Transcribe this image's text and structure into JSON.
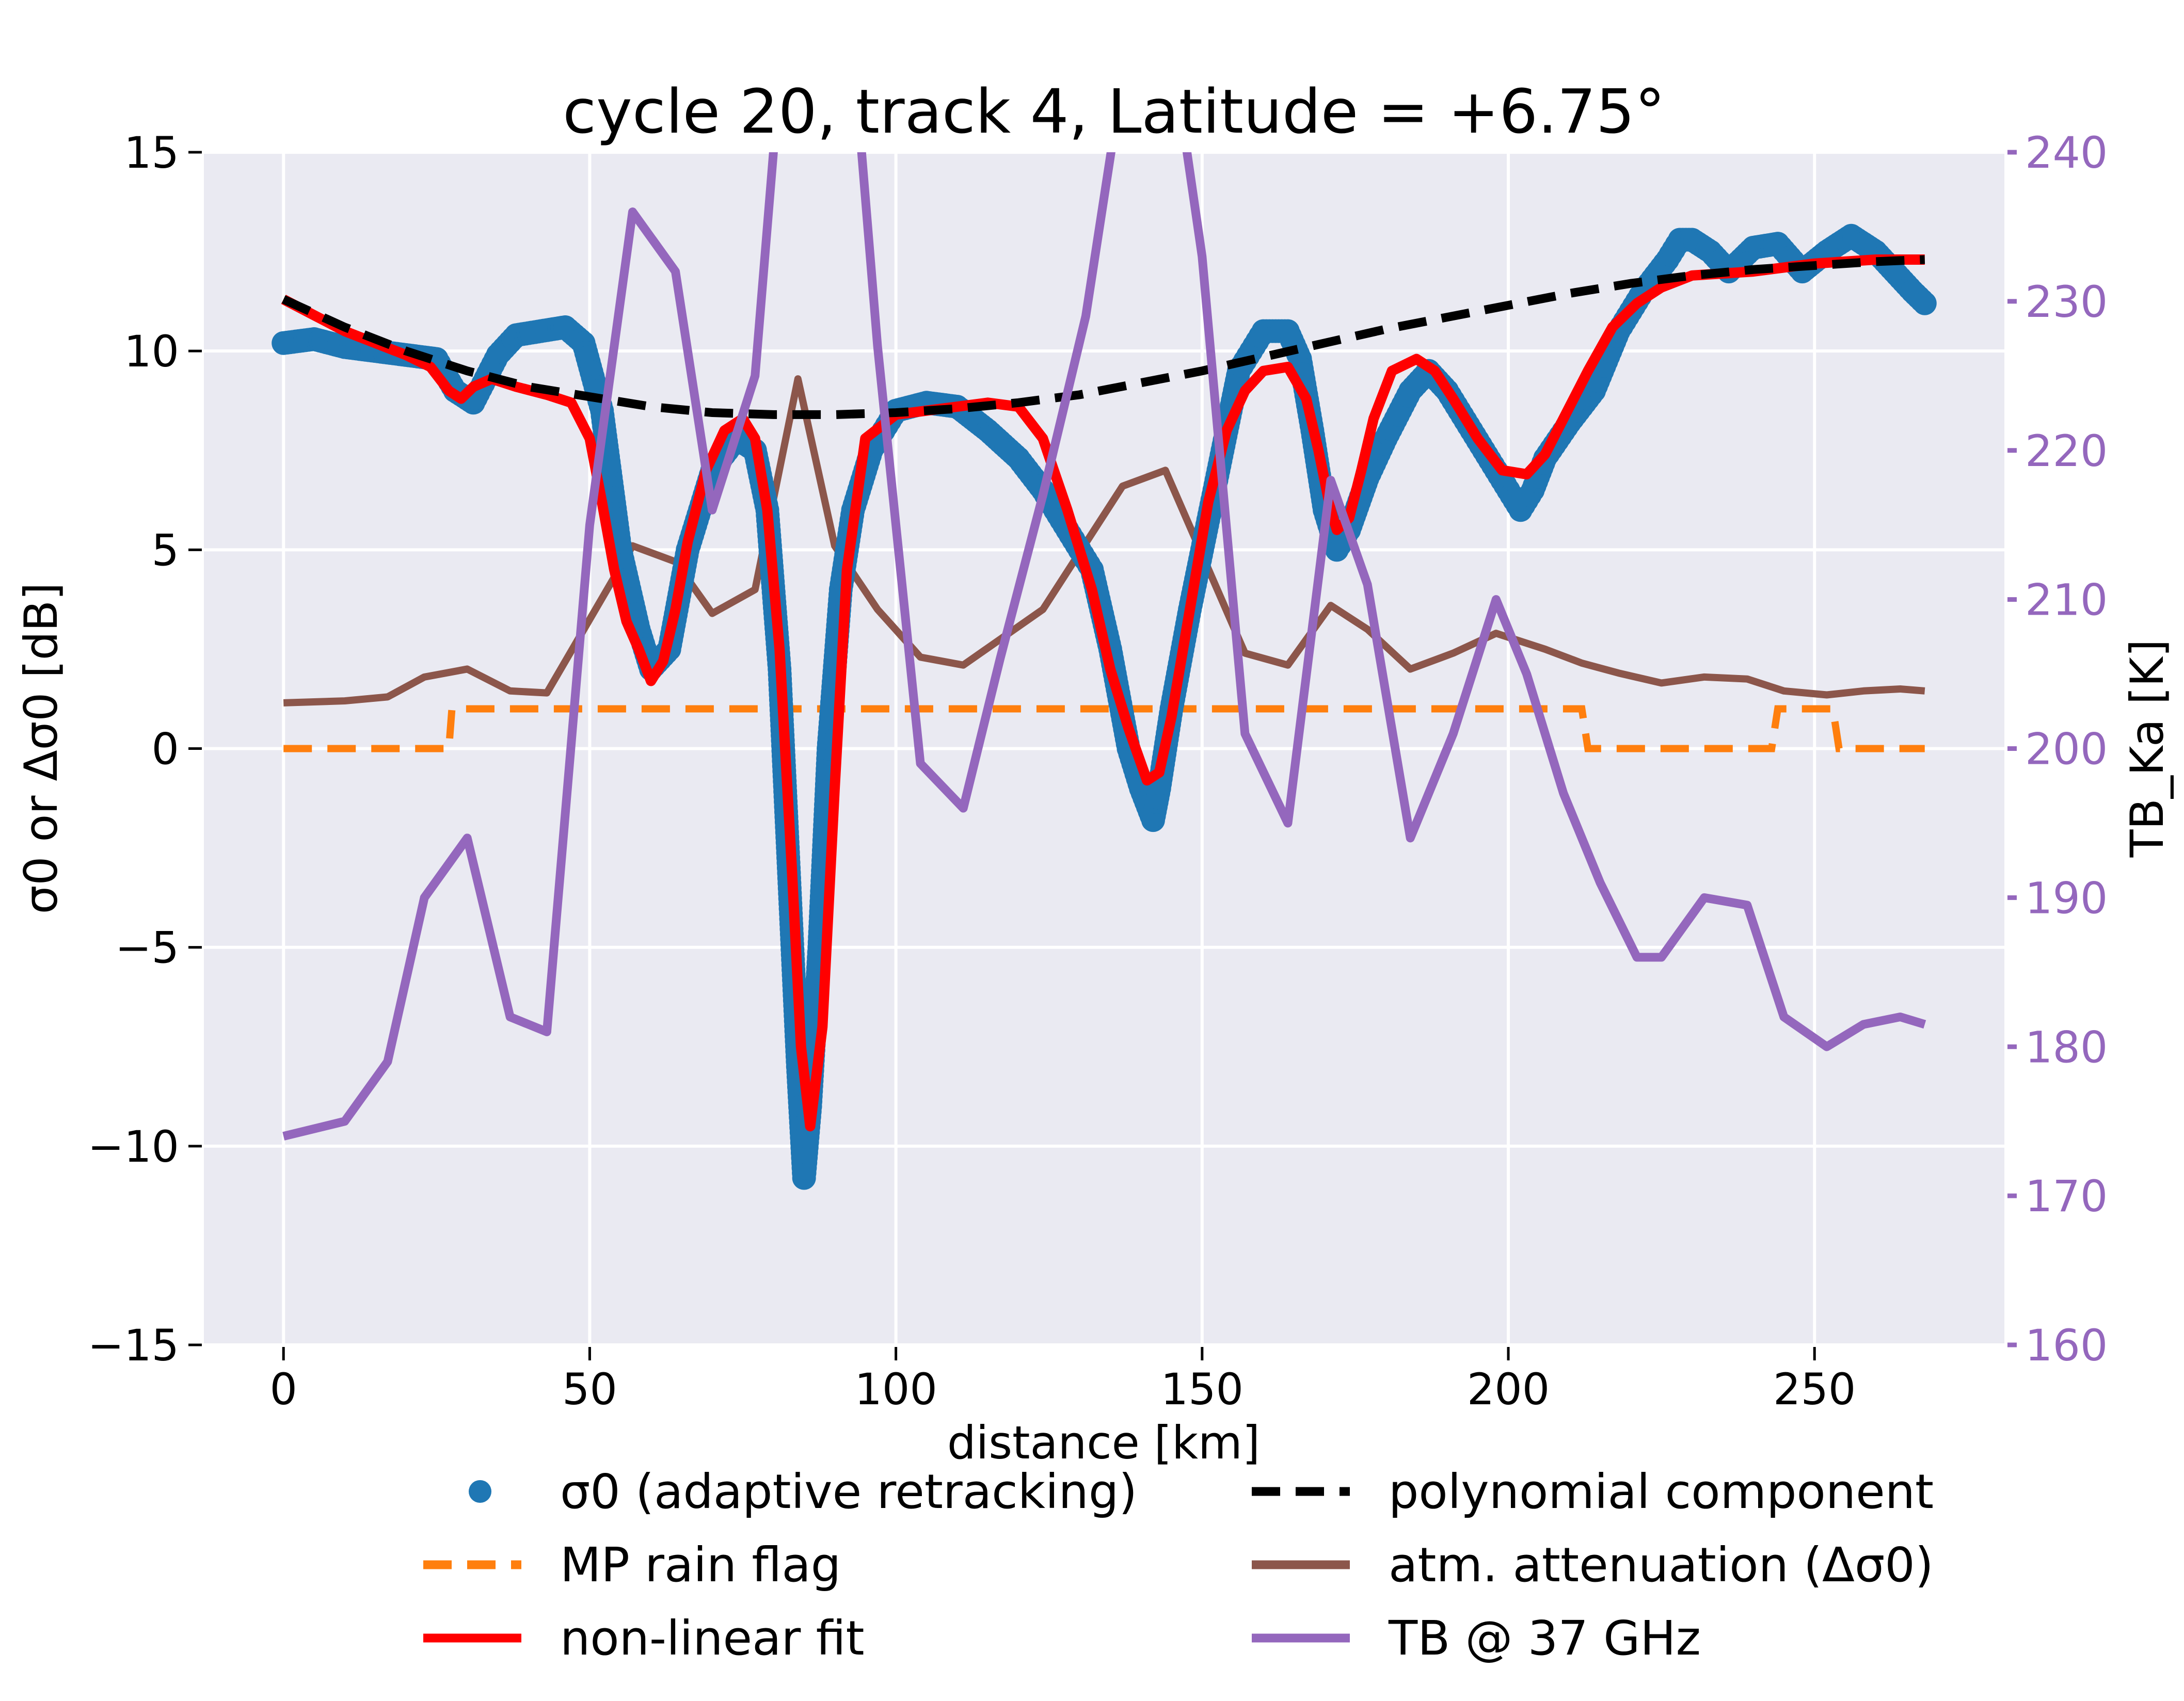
{
  "chart_data": {
    "type": "line",
    "title": "cycle 20, track 4, Latitude = +6.75°",
    "xlabel": "distance [km]",
    "ylabel": "σ0 or Δσ0 [dB]",
    "ylabel_right": "TB_Ka [K]",
    "xlim": [
      -13,
      281
    ],
    "ylim": [
      -15,
      15
    ],
    "ylim_right": [
      160,
      240
    ],
    "xticks": [
      0,
      50,
      100,
      150,
      200,
      250
    ],
    "yticks": [
      -15,
      -10,
      -5,
      0,
      5,
      10,
      15
    ],
    "yticks_right": [
      160,
      170,
      180,
      190,
      200,
      210,
      220,
      230,
      240
    ],
    "xtick_labels": [
      "0",
      "50",
      "100",
      "150",
      "200",
      "250"
    ],
    "ytick_labels": [
      "−15",
      "−10",
      "−5",
      "0",
      "5",
      "10",
      "15"
    ],
    "ytick_labels_right": [
      "160",
      "170",
      "180",
      "190",
      "200",
      "210",
      "220",
      "230",
      "240"
    ],
    "grid": true,
    "legend_position": "bottom",
    "colors": {
      "sigma0": "#1f77b4",
      "rain_flag": "#ff7f0e",
      "nonlinear_fit": "#ff0000",
      "polynomial": "#000000",
      "attenuation": "#8c564b",
      "tb37": "#9467bd",
      "plot_bg": "#eaeaf2"
    },
    "series": [
      {
        "name": "σ0 (adaptive retracking)",
        "axis": "left",
        "style": "markers",
        "x": [
          0,
          5,
          10,
          15,
          20,
          25,
          28,
          31,
          35,
          38,
          42,
          46,
          49,
          52,
          55,
          58,
          60,
          63,
          66,
          70,
          74,
          77,
          79,
          81,
          82.5,
          84,
          85,
          86,
          87.5,
          89,
          91,
          93,
          96,
          100,
          105,
          110,
          115,
          120,
          124,
          128,
          132,
          135,
          138,
          140,
          142,
          143,
          145,
          148,
          152,
          156,
          160,
          164,
          166,
          168,
          170,
          172,
          174,
          177,
          180,
          184,
          187,
          190,
          194,
          198,
          202,
          204,
          206,
          210,
          214,
          218,
          222,
          226,
          228,
          230,
          233,
          236,
          240,
          244,
          248,
          252,
          256,
          260,
          263,
          266,
          268
        ],
        "y": [
          10.2,
          10.3,
          10.1,
          10.0,
          9.9,
          9.8,
          9.0,
          8.7,
          9.9,
          10.4,
          10.5,
          10.6,
          10.2,
          8.5,
          5.0,
          3.0,
          2.0,
          2.5,
          5.0,
          7.0,
          7.8,
          7.5,
          6.0,
          2.0,
          -3.0,
          -8.0,
          -10.8,
          -9.0,
          -5.0,
          0.0,
          4.0,
          6.0,
          7.5,
          8.5,
          8.7,
          8.6,
          8.0,
          7.3,
          6.5,
          5.5,
          4.5,
          2.5,
          0.0,
          -1.0,
          -1.8,
          -1.0,
          1.0,
          3.5,
          6.5,
          9.5,
          10.5,
          10.5,
          9.8,
          8.0,
          6.0,
          5.0,
          5.5,
          6.8,
          7.8,
          9.0,
          9.5,
          9.0,
          8.0,
          7.0,
          6.0,
          6.5,
          7.3,
          8.2,
          9.0,
          10.5,
          11.5,
          12.3,
          12.8,
          12.8,
          12.5,
          12.0,
          12.6,
          12.7,
          12.0,
          12.5,
          12.9,
          12.5,
          12.0,
          11.5,
          11.2
        ]
      },
      {
        "name": "MP rain flag",
        "axis": "left",
        "style": "dashed-step",
        "x": [
          0,
          27,
          27.5,
          212,
          213,
          243,
          244,
          253,
          254,
          268
        ],
        "y": [
          0,
          0,
          1,
          1,
          0,
          0,
          1,
          1,
          0,
          0
        ]
      },
      {
        "name": "non-linear fit",
        "axis": "left",
        "style": "solid",
        "x": [
          0,
          5,
          10,
          15,
          20,
          24,
          27,
          29,
          31,
          34,
          38,
          43,
          47,
          50,
          52,
          54,
          56,
          58,
          60,
          62,
          64,
          66,
          69,
          72,
          75,
          77,
          79,
          81,
          83,
          84.5,
          86,
          88,
          90,
          92,
          95,
          100,
          105,
          110,
          115,
          120,
          124,
          128,
          132,
          135,
          138,
          141,
          143,
          145,
          148,
          151,
          154,
          157,
          160,
          164,
          167,
          169,
          171,
          172,
          174,
          176,
          178,
          181,
          185,
          188,
          191,
          195,
          199,
          203,
          206,
          209,
          213,
          217,
          221,
          225,
          230,
          240,
          250,
          260,
          268
        ],
        "y": [
          11.3,
          10.9,
          10.5,
          10.2,
          9.9,
          9.6,
          9.0,
          8.8,
          9.1,
          9.3,
          9.1,
          8.9,
          8.7,
          7.8,
          6.2,
          4.5,
          3.2,
          2.5,
          1.7,
          2.2,
          3.5,
          5.2,
          7.0,
          8.0,
          8.3,
          7.8,
          6.0,
          2.5,
          -3.0,
          -7.5,
          -9.5,
          -7.0,
          -1.0,
          4.5,
          7.8,
          8.4,
          8.5,
          8.6,
          8.7,
          8.6,
          7.8,
          6.0,
          4.0,
          2.0,
          0.5,
          -0.8,
          -0.6,
          0.8,
          3.5,
          6.2,
          8.0,
          9.0,
          9.5,
          9.6,
          8.8,
          7.5,
          6.0,
          5.5,
          5.8,
          7.0,
          8.3,
          9.5,
          9.8,
          9.5,
          8.8,
          7.8,
          7.0,
          6.9,
          7.4,
          8.3,
          9.5,
          10.6,
          11.2,
          11.6,
          11.9,
          12.0,
          12.2,
          12.3,
          12.3
        ]
      },
      {
        "name": "polynomial component",
        "axis": "left",
        "style": "dashed",
        "x": [
          0,
          10,
          20,
          30,
          40,
          50,
          60,
          70,
          80,
          90,
          100,
          110,
          120,
          130,
          140,
          150,
          160,
          170,
          180,
          190,
          200,
          210,
          220,
          230,
          240,
          250,
          260,
          268
        ],
        "y": [
          11.3,
          10.6,
          10.0,
          9.5,
          9.1,
          8.85,
          8.6,
          8.45,
          8.4,
          8.4,
          8.45,
          8.55,
          8.7,
          8.9,
          9.2,
          9.5,
          9.85,
          10.2,
          10.55,
          10.85,
          11.15,
          11.45,
          11.7,
          11.9,
          12.05,
          12.15,
          12.25,
          12.3
        ]
      },
      {
        "name": "atm. attenuation (Δσ0)",
        "axis": "left",
        "style": "solid",
        "x": [
          0,
          10,
          17,
          23,
          30,
          37,
          43,
          57,
          64,
          70,
          77,
          84,
          90,
          97,
          104,
          111,
          124,
          137,
          144,
          157,
          164,
          171,
          177,
          184,
          191,
          198,
          206,
          212,
          218,
          225,
          232,
          239,
          245,
          252,
          258,
          264,
          268
        ],
        "y": [
          1.15,
          1.2,
          1.3,
          1.8,
          2.0,
          1.45,
          1.4,
          5.1,
          4.7,
          3.4,
          4.0,
          9.3,
          5.1,
          3.5,
          2.3,
          2.1,
          3.5,
          6.6,
          7.0,
          2.4,
          2.1,
          3.6,
          3.0,
          2.0,
          2.4,
          2.9,
          2.5,
          2.15,
          1.9,
          1.65,
          1.8,
          1.75,
          1.45,
          1.35,
          1.45,
          1.5,
          1.45
        ]
      },
      {
        "name": "TB @ 37 GHz",
        "axis": "right",
        "style": "solid",
        "x": [
          0,
          10,
          17,
          23,
          30,
          37,
          43,
          50,
          57,
          64,
          70,
          77,
          84,
          90,
          97,
          104,
          111,
          117,
          124,
          131,
          137,
          144,
          150,
          157,
          164,
          171,
          177,
          184,
          191,
          198,
          203,
          209,
          215,
          221,
          225,
          232,
          239,
          245,
          252,
          258,
          264,
          268
        ],
        "y": [
          174,
          175,
          179,
          190,
          194,
          182,
          181,
          215,
          236,
          232,
          216,
          225,
          260,
          262,
          227,
          199,
          196,
          206,
          217,
          229,
          245,
          250,
          233,
          201,
          195,
          218,
          211,
          194,
          201,
          210,
          205,
          197,
          191,
          186,
          186,
          190,
          189.5,
          182,
          180,
          181.5,
          182,
          181.5
        ]
      }
    ]
  }
}
